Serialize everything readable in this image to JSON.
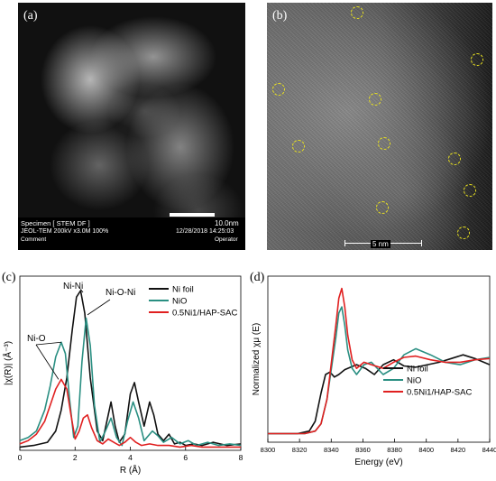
{
  "panel_a": {
    "label": "(a)",
    "scale_bar": "10.0nm",
    "meta_line1": "Specimen [ STEM DF ]",
    "meta_line2": "JEOL-TEM 200kV x3.0M 100%",
    "meta_line3": "Comment",
    "meta_date": "12/28/2018 14:25:03",
    "meta_operator": "Operator"
  },
  "panel_b": {
    "label": "(b)",
    "scale_bar": "5 nm",
    "circle_color": "#e8e020",
    "circles": [
      [
        0.4,
        0.04
      ],
      [
        0.93,
        0.23
      ],
      [
        0.05,
        0.35
      ],
      [
        0.48,
        0.39
      ],
      [
        0.14,
        0.58
      ],
      [
        0.52,
        0.57
      ],
      [
        0.83,
        0.63
      ],
      [
        0.9,
        0.76
      ],
      [
        0.51,
        0.83
      ],
      [
        0.87,
        0.93
      ]
    ]
  },
  "chart_data": [
    {
      "label": "(c)",
      "type": "line",
      "xlabel": "R (Å)",
      "ylabel": "|χ(R)| (Å⁻³)",
      "xlim": [
        0,
        8
      ],
      "x_ticks": [
        "0",
        "2",
        "4",
        "6",
        "8"
      ],
      "legend": "top-right",
      "series": [
        {
          "name": "Ni foil",
          "color": "#111111",
          "x": [
            0,
            0.5,
            1.0,
            1.3,
            1.5,
            1.7,
            1.9,
            2.05,
            2.2,
            2.35,
            2.55,
            2.8,
            3.0,
            3.15,
            3.3,
            3.45,
            3.6,
            3.8,
            4.0,
            4.15,
            4.3,
            4.5,
            4.7,
            4.85,
            5.0,
            5.2,
            5.4,
            5.6,
            5.8,
            6.0,
            6.3,
            6.6,
            7.0,
            7.5,
            8.0
          ],
          "y": [
            0.02,
            0.03,
            0.05,
            0.12,
            0.25,
            0.45,
            0.75,
            0.95,
            0.99,
            0.85,
            0.45,
            0.12,
            0.06,
            0.18,
            0.3,
            0.15,
            0.05,
            0.1,
            0.35,
            0.42,
            0.3,
            0.15,
            0.3,
            0.22,
            0.1,
            0.06,
            0.1,
            0.04,
            0.05,
            0.03,
            0.04,
            0.03,
            0.05,
            0.03,
            0.04
          ]
        },
        {
          "name": "NiO",
          "color": "#2a8f82",
          "x": [
            0,
            0.3,
            0.6,
            0.9,
            1.1,
            1.3,
            1.5,
            1.65,
            1.8,
            1.95,
            2.1,
            2.25,
            2.4,
            2.55,
            2.7,
            2.9,
            3.1,
            3.3,
            3.5,
            3.7,
            3.9,
            4.1,
            4.3,
            4.5,
            4.8,
            5.0,
            5.2,
            5.5,
            5.8,
            6.1,
            6.4,
            6.8,
            7.2,
            7.6,
            8.0
          ],
          "y": [
            0.06,
            0.08,
            0.12,
            0.25,
            0.4,
            0.58,
            0.67,
            0.6,
            0.32,
            0.08,
            0.15,
            0.55,
            0.82,
            0.65,
            0.28,
            0.05,
            0.12,
            0.2,
            0.08,
            0.03,
            0.18,
            0.3,
            0.2,
            0.06,
            0.12,
            0.09,
            0.05,
            0.08,
            0.04,
            0.06,
            0.03,
            0.05,
            0.03,
            0.04,
            0.03
          ]
        },
        {
          "name": "0.5Ni1/HAP-SAC",
          "color": "#e02020",
          "x": [
            0,
            0.3,
            0.6,
            0.9,
            1.1,
            1.3,
            1.5,
            1.7,
            1.85,
            2.0,
            2.15,
            2.3,
            2.45,
            2.6,
            2.8,
            3.0,
            3.2,
            3.4,
            3.6,
            3.8,
            4.0,
            4.2,
            4.4,
            4.7,
            5.0,
            5.4,
            5.8,
            6.2,
            6.6,
            7.0,
            7.5,
            8.0
          ],
          "y": [
            0.04,
            0.06,
            0.1,
            0.18,
            0.28,
            0.38,
            0.44,
            0.38,
            0.22,
            0.07,
            0.12,
            0.2,
            0.22,
            0.14,
            0.06,
            0.04,
            0.07,
            0.05,
            0.03,
            0.05,
            0.08,
            0.05,
            0.03,
            0.04,
            0.03,
            0.03,
            0.02,
            0.03,
            0.02,
            0.02,
            0.02,
            0.02
          ]
        }
      ],
      "annotations": [
        "Ni-Ni",
        "Ni-O-Ni",
        "Ni-O"
      ]
    },
    {
      "label": "(d)",
      "type": "line",
      "xlabel": "Energy (eV)",
      "ylabel": "Normalized χμ (E)",
      "xlim": [
        8300,
        8450
      ],
      "x_ticks": [
        "8300",
        "8320",
        "8340",
        "8360",
        "8380",
        "8400",
        "8420",
        "8440"
      ],
      "legend": "bottom-right",
      "series": [
        {
          "name": "Ni foil",
          "color": "#111111",
          "x": [
            8300,
            8320,
            8328,
            8332,
            8336,
            8339,
            8342,
            8345,
            8348,
            8352,
            8356,
            8360,
            8366,
            8372,
            8378,
            8385,
            8392,
            8400,
            8408,
            8416,
            8424,
            8432,
            8440,
            8450
          ],
          "y": [
            0.02,
            0.02,
            0.04,
            0.12,
            0.35,
            0.5,
            0.52,
            0.48,
            0.5,
            0.54,
            0.56,
            0.58,
            0.55,
            0.5,
            0.58,
            0.62,
            0.57,
            0.56,
            0.58,
            0.6,
            0.63,
            0.66,
            0.63,
            0.58
          ]
        },
        {
          "name": "NiO",
          "color": "#2a8f82",
          "x": [
            8300,
            8325,
            8332,
            8336,
            8340,
            8343,
            8346,
            8348,
            8350,
            8352,
            8354,
            8357,
            8360,
            8365,
            8370,
            8378,
            8385,
            8392,
            8400,
            8410,
            8420,
            8430,
            8440,
            8450
          ],
          "y": [
            0.02,
            0.02,
            0.04,
            0.1,
            0.3,
            0.55,
            0.8,
            1.0,
            1.05,
            0.9,
            0.7,
            0.55,
            0.5,
            0.58,
            0.6,
            0.5,
            0.55,
            0.66,
            0.71,
            0.66,
            0.6,
            0.58,
            0.62,
            0.64
          ]
        },
        {
          "name": "0.5Ni1/HAP-SAC",
          "color": "#e02020",
          "x": [
            8300,
            8325,
            8332,
            8336,
            8340,
            8343,
            8346,
            8348,
            8350,
            8352,
            8354,
            8357,
            8360,
            8365,
            8370,
            8378,
            8385,
            8392,
            8400,
            8410,
            8420,
            8430,
            8440,
            8450
          ],
          "y": [
            0.02,
            0.02,
            0.04,
            0.1,
            0.3,
            0.6,
            0.9,
            1.12,
            1.2,
            1.05,
            0.82,
            0.62,
            0.55,
            0.6,
            0.58,
            0.55,
            0.6,
            0.64,
            0.65,
            0.62,
            0.6,
            0.6,
            0.62,
            0.63
          ]
        }
      ]
    }
  ]
}
